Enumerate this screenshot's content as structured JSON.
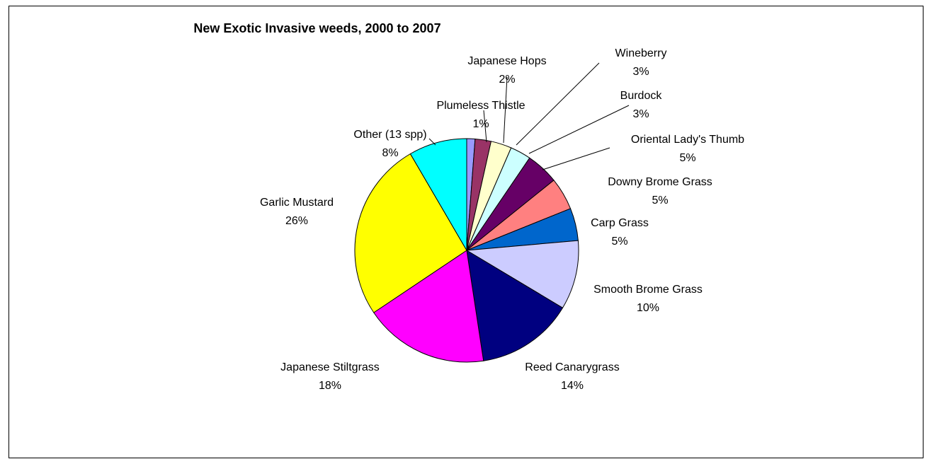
{
  "chart_data": {
    "type": "pie",
    "title": "New Exotic Invasive weeds, 2000 to 2007",
    "slices": [
      {
        "name": "Plumeless Thistle",
        "pct_label": "1%",
        "value": 1.2,
        "color": "#9999FF"
      },
      {
        "name": "Japanese Hops",
        "pct_label": "2%",
        "value": 2.3,
        "color": "#993366"
      },
      {
        "name": "Wineberry",
        "pct_label": "3%",
        "value": 3.0,
        "color": "#FFFFCC"
      },
      {
        "name": "Burdock",
        "pct_label": "3%",
        "value": 3.0,
        "color": "#CCFFFF"
      },
      {
        "name": "Oriental Lady's Thumb",
        "pct_label": "5%",
        "value": 4.7,
        "color": "#660066"
      },
      {
        "name": "Downy Brome Grass",
        "pct_label": "5%",
        "value": 4.7,
        "color": "#FF8080"
      },
      {
        "name": "Carp Grass",
        "pct_label": "5%",
        "value": 4.7,
        "color": "#0066CC"
      },
      {
        "name": "Smooth Brome Grass",
        "pct_label": "10%",
        "value": 10.0,
        "color": "#CCCCFF"
      },
      {
        "name": "Reed Canarygrass",
        "pct_label": "14%",
        "value": 14.0,
        "color": "#000080"
      },
      {
        "name": "Japanese Stiltgrass",
        "pct_label": "18%",
        "value": 18.0,
        "color": "#FF00FF"
      },
      {
        "name": "Garlic Mustard",
        "pct_label": "26%",
        "value": 26.0,
        "color": "#FFFF00"
      },
      {
        "name": "Other (13 spp)",
        "pct_label": "8%",
        "value": 8.4,
        "color": "#00FFFF"
      }
    ]
  }
}
